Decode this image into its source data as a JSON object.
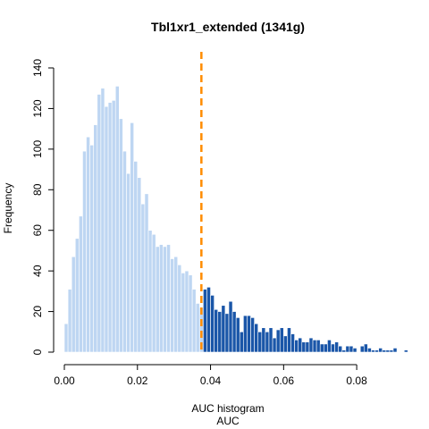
{
  "chart_data": {
    "type": "bar",
    "title": "Tbl1xr1_extended (1341g)",
    "xlabel": "AUC histogram",
    "xlabel2": "AUC",
    "ylabel": "Frequency",
    "xlim": [
      0,
      0.09
    ],
    "ylim": [
      0,
      140
    ],
    "bin_width": 0.001,
    "x_ticks": [
      "0.00",
      "0.02",
      "0.04",
      "0.06",
      "0.08"
    ],
    "x_tick_values": [
      0,
      0.02,
      0.04,
      0.06,
      0.08
    ],
    "y_ticks": [
      "0",
      "20",
      "40",
      "60",
      "80",
      "100",
      "120",
      "140"
    ],
    "y_tick_values": [
      0,
      20,
      40,
      60,
      80,
      100,
      120,
      140
    ],
    "threshold": 0.0375,
    "bins_start": 0.0,
    "counts": [
      14,
      31,
      47,
      56,
      67,
      99,
      106,
      102,
      112,
      127,
      130,
      121,
      123,
      124,
      131,
      115,
      99,
      88,
      113,
      94,
      86,
      73,
      78,
      60,
      58,
      52,
      53,
      52,
      53,
      46,
      47,
      43,
      39,
      40,
      38,
      31,
      24,
      22,
      31,
      32,
      28,
      21,
      20,
      23,
      19,
      25,
      20,
      17,
      10,
      18,
      18,
      17,
      14,
      10,
      12,
      10,
      12,
      7,
      11,
      12,
      8,
      12,
      9,
      6,
      7,
      5,
      5,
      7,
      6,
      6,
      4,
      4,
      6,
      4,
      5,
      3,
      1,
      3,
      3,
      2,
      0,
      3,
      4,
      2,
      1,
      1,
      2,
      1,
      1,
      1,
      2,
      0,
      0,
      1,
      0,
      0
    ],
    "colors": {
      "below": "#bed6f2",
      "above": "#1a56a8",
      "threshold": "#ff8c00"
    }
  }
}
